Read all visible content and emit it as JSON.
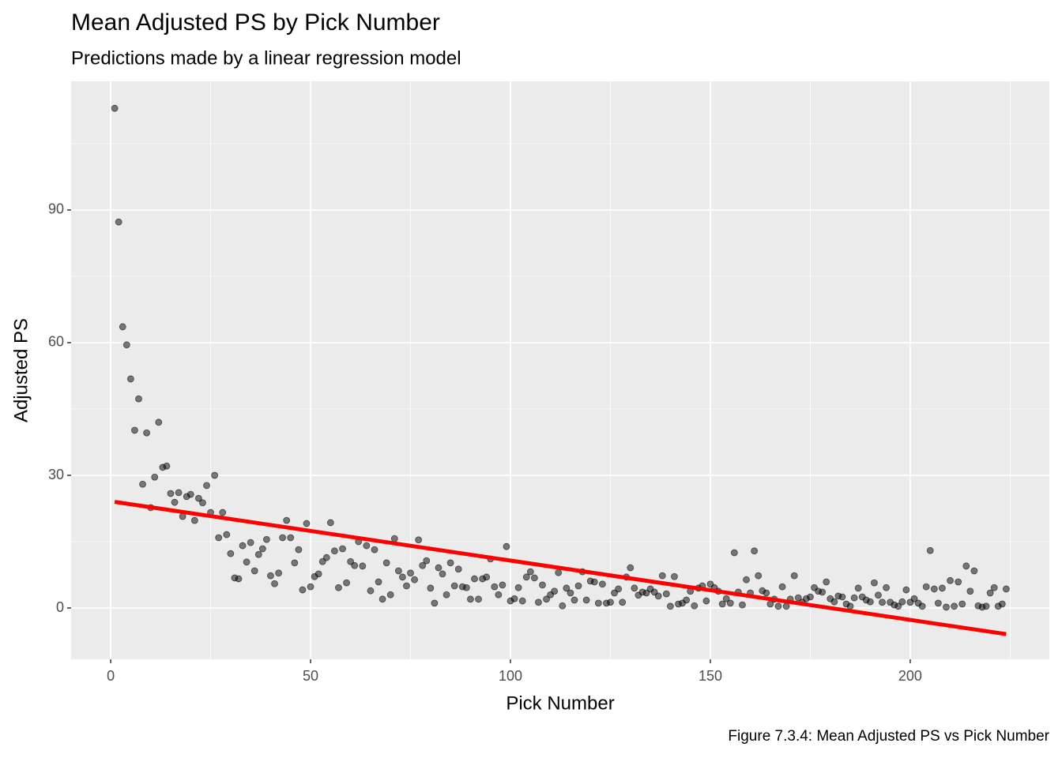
{
  "chart_data": {
    "type": "scatter",
    "title": "Mean Adjusted PS by Pick Number",
    "subtitle": "Predictions made by a linear regression model",
    "x_label": "Pick Number",
    "y_label": "Adjusted PS",
    "caption": "Figure 7.3.4: Mean Adjusted PS vs Pick Number",
    "xlim": [
      -9.9,
      234.8
    ],
    "ylim": [
      -11.6,
      119.1
    ],
    "xticks": [
      0,
      50,
      100,
      150,
      200
    ],
    "yticks": [
      0,
      30,
      60,
      90
    ],
    "minor_xticks": [
      25,
      75,
      125,
      175,
      225
    ],
    "minor_yticks": [
      15,
      45,
      75,
      105
    ],
    "grid": true,
    "points": {
      "color": "#000000",
      "x": [
        1,
        2,
        3,
        4,
        5,
        6,
        7,
        8,
        9,
        10,
        11,
        12,
        13,
        14,
        15,
        16,
        17,
        18,
        19,
        20,
        21,
        22,
        23,
        24,
        25,
        26,
        27,
        28,
        29,
        30,
        31,
        32,
        33,
        34,
        35,
        36,
        37,
        38,
        39,
        40,
        41,
        42,
        43,
        44,
        45,
        46,
        47,
        48,
        49,
        50,
        51,
        52,
        53,
        54,
        55,
        56,
        57,
        58,
        59,
        60,
        61,
        62,
        63,
        64,
        65,
        66,
        67,
        68,
        69,
        70,
        71,
        72,
        73,
        74,
        75,
        76,
        77,
        78,
        79,
        80,
        81,
        82,
        83,
        84,
        85,
        86,
        87,
        88,
        89,
        90,
        91,
        92,
        93,
        94,
        95,
        96,
        97,
        98,
        99,
        100,
        101,
        102,
        103,
        104,
        105,
        106,
        107,
        108,
        109,
        110,
        111,
        112,
        113,
        114,
        115,
        116,
        117,
        118,
        119,
        120,
        121,
        122,
        123,
        124,
        125,
        126,
        127,
        128,
        129,
        130,
        131,
        132,
        133,
        134,
        135,
        136,
        137,
        138,
        139,
        140,
        141,
        142,
        143,
        144,
        145,
        146,
        147,
        148,
        149,
        150,
        151,
        152,
        153,
        154,
        155,
        156,
        157,
        158,
        159,
        160,
        161,
        162,
        163,
        164,
        165,
        166,
        167,
        168,
        169,
        170,
        171,
        172,
        173,
        174,
        175,
        176,
        177,
        178,
        179,
        180,
        181,
        182,
        183,
        184,
        185,
        186,
        187,
        188,
        189,
        190,
        191,
        192,
        193,
        194,
        195,
        196,
        197,
        198,
        199,
        200,
        201,
        202,
        203,
        204,
        205,
        206,
        207,
        208,
        209,
        210,
        211,
        212,
        213,
        214,
        215,
        216,
        217,
        218,
        219,
        220,
        221,
        222,
        223,
        224
      ],
      "values": [
        113,
        87.3,
        63.6,
        59.5,
        51.8,
        40.2,
        47.3,
        28,
        39.6,
        22.7,
        29.6,
        42,
        31.8,
        32.1,
        25.9,
        23.9,
        26.1,
        20.7,
        25.2,
        25.7,
        19.8,
        24.8,
        23.8,
        27.7,
        21.6,
        30,
        15.9,
        21.6,
        16.6,
        12.3,
        6.8,
        6.6,
        14.1,
        10.4,
        14.8,
        8.4,
        12.1,
        13.4,
        15.5,
        7.3,
        5.5,
        7.9,
        15.9,
        19.8,
        15.9,
        10.2,
        13.2,
        4.1,
        19.1,
        4.8,
        7.1,
        7.7,
        10.5,
        11.4,
        19.3,
        12.9,
        4.6,
        13.4,
        5.7,
        10.5,
        9.6,
        15,
        9.5,
        14.1,
        3.9,
        13.2,
        5.9,
        2,
        10.2,
        3,
        15.7,
        8.4,
        7,
        5,
        7.9,
        6.4,
        15.4,
        9.6,
        10.7,
        4.5,
        1.1,
        9.1,
        7.7,
        3,
        10.2,
        5,
        8.8,
        4.8,
        4.6,
        2,
        6.6,
        2,
        6.6,
        7,
        11.1,
        4.8,
        3,
        5.2,
        13.9,
        1.6,
        2.1,
        4.6,
        1.6,
        7,
        8.2,
        6.8,
        1.3,
        5.2,
        2,
        3,
        3.8,
        8,
        0.5,
        4.5,
        3.4,
        1.8,
        5,
        8.2,
        1.8,
        6.1,
        5.9,
        1.1,
        5.4,
        1.1,
        1.3,
        3.4,
        4.3,
        1.3,
        7,
        9.1,
        4.5,
        2.9,
        3.6,
        3.4,
        4.3,
        3.6,
        2.7,
        7.3,
        3.2,
        0.4,
        7.1,
        0.9,
        1.1,
        1.8,
        3.8,
        0.5,
        4.5,
        5,
        1.6,
        5.4,
        4.6,
        3.8,
        0.9,
        2.1,
        1.1,
        12.5,
        3.6,
        0.7,
        6.4,
        3.4,
        12.9,
        7.3,
        3.9,
        3.4,
        0.9,
        2,
        0.4,
        4.8,
        0.4,
        2,
        7.3,
        2.3,
        1.3,
        2.1,
        2.5,
        4.6,
        3.8,
        3.6,
        5.9,
        2.1,
        1.4,
        2.7,
        2.5,
        0.9,
        0.4,
        2.3,
        4.5,
        2.5,
        1.8,
        1.4,
        5.7,
        2.9,
        1.3,
        4.6,
        1.3,
        0.7,
        0.4,
        1.4,
        4.1,
        1.3,
        2.1,
        1.1,
        0.4,
        4.8,
        13,
        4.3,
        1.1,
        4.5,
        0.2,
        6.2,
        0.4,
        5.9,
        0.9,
        9.5,
        3.8,
        8.4,
        0.5,
        0.2,
        0.4,
        3.4,
        4.6,
        0.4,
        0.9,
        4.3
      ]
    },
    "fit": {
      "color": "#ff0000",
      "x": [
        1,
        224
      ],
      "values": [
        24.0,
        -5.9
      ]
    }
  }
}
